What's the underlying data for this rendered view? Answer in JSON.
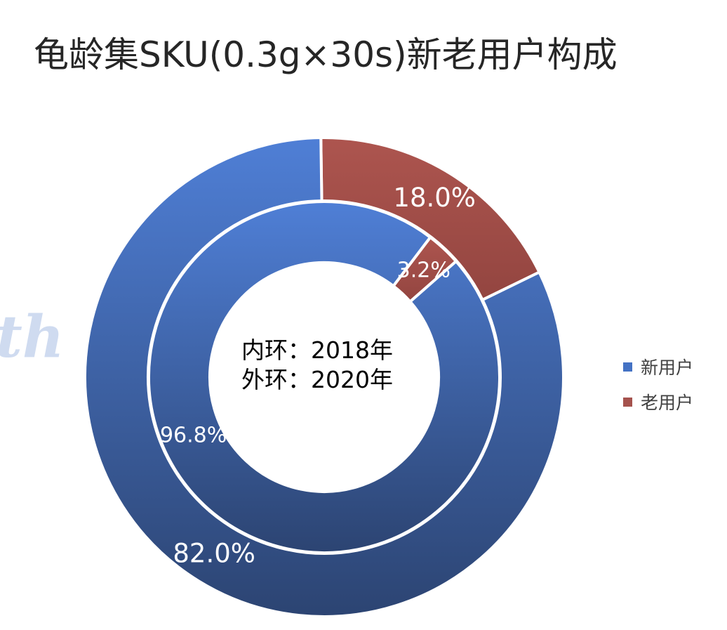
{
  "chart_data": {
    "type": "pie",
    "subtype": "doughnut",
    "title": "龟龄集SKU(0.3g×30s)新老用户构成",
    "center_annotation": [
      "内环：2018年",
      "外环：2020年"
    ],
    "categories": [
      "新用户",
      "老用户"
    ],
    "series": [
      {
        "ring": "inner",
        "values": [
          96.8,
          3.2
        ],
        "labels": [
          "96.8%",
          "3.2%"
        ]
      },
      {
        "ring": "outer",
        "values": [
          82.0,
          18.0
        ],
        "labels": [
          "82.0%",
          "18.0%"
        ]
      }
    ],
    "colors": {
      "新用户": "#4472c4",
      "老用户": "#a5524d"
    },
    "legend": "right",
    "watermark": "th"
  }
}
